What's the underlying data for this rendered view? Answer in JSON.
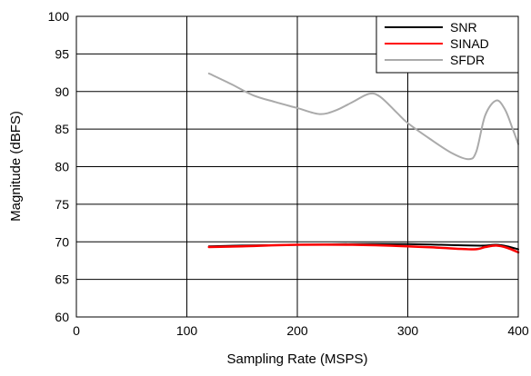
{
  "chart_data": {
    "type": "line",
    "title": "",
    "xlabel": "Sampling Rate (MSPS)",
    "ylabel": "Magnitude (dBFS)",
    "xlim": [
      0,
      400
    ],
    "ylim": [
      60,
      100
    ],
    "xticks": [
      "0",
      "100",
      "200",
      "300",
      "400"
    ],
    "yticks": [
      "60",
      "65",
      "70",
      "75",
      "80",
      "85",
      "90",
      "95",
      "100"
    ],
    "grid": true,
    "legend_position": "top-right",
    "series": [
      {
        "name": "SNR",
        "color": "#000000",
        "x": [
          120,
          150,
          200,
          250,
          300,
          330,
          360,
          370,
          380,
          390,
          400
        ],
        "y": [
          69.4,
          69.5,
          69.6,
          69.7,
          69.7,
          69.6,
          69.5,
          69.5,
          69.6,
          69.4,
          69.0
        ]
      },
      {
        "name": "SINAD",
        "color": "#ff0000",
        "x": [
          120,
          150,
          200,
          250,
          300,
          330,
          360,
          370,
          380,
          390,
          400
        ],
        "y": [
          69.3,
          69.4,
          69.6,
          69.6,
          69.4,
          69.2,
          69.0,
          69.3,
          69.5,
          69.2,
          68.6
        ]
      },
      {
        "name": "SFDR",
        "color": "#aaaaaa",
        "x": [
          120,
          140,
          160,
          180,
          200,
          220,
          235,
          250,
          265,
          275,
          290,
          300,
          320,
          340,
          355,
          362,
          370,
          380,
          388,
          395,
          400
        ],
        "y": [
          92.4,
          91.0,
          89.5,
          88.6,
          87.8,
          87.0,
          87.5,
          88.6,
          89.7,
          89.3,
          87.2,
          85.8,
          83.7,
          81.8,
          81.0,
          82.0,
          86.8,
          88.8,
          87.6,
          85.0,
          83.0
        ]
      }
    ]
  }
}
